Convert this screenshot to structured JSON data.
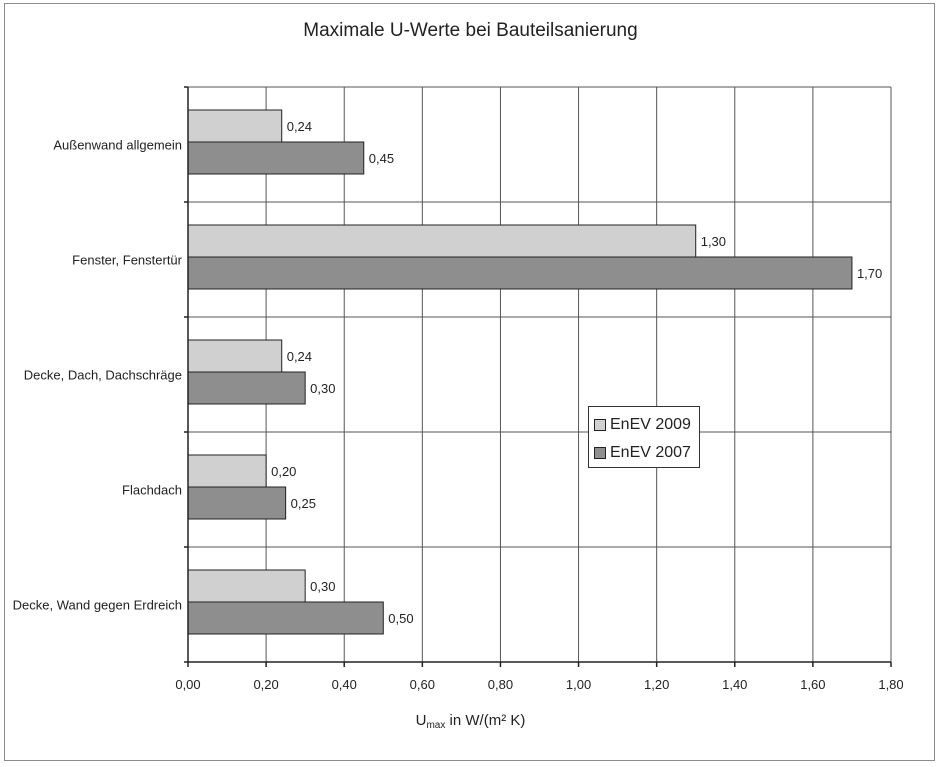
{
  "chart_data": {
    "type": "bar",
    "orientation": "horizontal",
    "title": "Maximale U-Werte bei Bauteilsanierung",
    "xlabel": {
      "main": "U",
      "sub": "max",
      "rest": " in W/(m² K)"
    },
    "ylabel": "",
    "categories": [
      "Außenwand allgemein",
      "Fenster, Fenstertür",
      "Decke, Dach, Dachschräge",
      "Flachdach",
      "Decke, Wand gegen Erdreich"
    ],
    "series": [
      {
        "name": "EnEV 2009",
        "values": [
          0.24,
          1.3,
          0.24,
          0.2,
          0.3
        ],
        "labels": [
          "0,24",
          "1,30",
          "0,24",
          "0,20",
          "0,30"
        ],
        "color": "#d0d0d0"
      },
      {
        "name": "EnEV 2007",
        "values": [
          0.45,
          1.7,
          0.3,
          0.25,
          0.5
        ],
        "labels": [
          "0,45",
          "1,70",
          "0,30",
          "0,25",
          "0,50"
        ],
        "color": "#8e8e8e"
      }
    ],
    "xlim": [
      0,
      1.8
    ],
    "xticks": [
      0,
      0.2,
      0.4,
      0.6,
      0.8,
      1.0,
      1.2,
      1.4,
      1.6,
      1.8
    ],
    "xtick_labels": [
      "0,00",
      "0,20",
      "0,40",
      "0,60",
      "0,80",
      "1,00",
      "1,20",
      "1,40",
      "1,60",
      "1,80"
    ],
    "grid": true,
    "legend_position": "right-center"
  }
}
